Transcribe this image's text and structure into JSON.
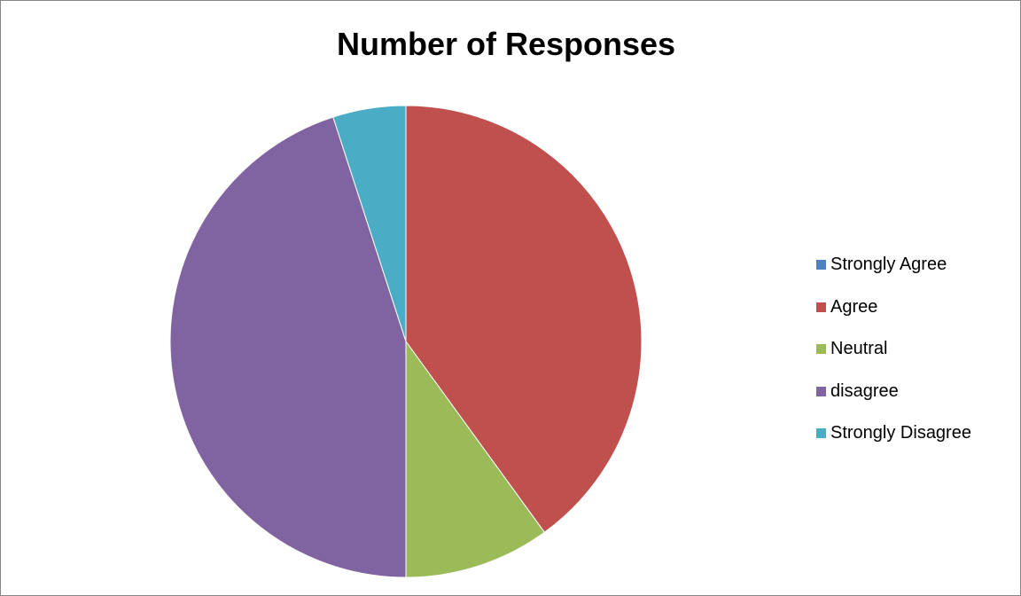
{
  "chart_data": {
    "type": "pie",
    "title": "Number of Responses",
    "categories": [
      "Strongly Agree",
      "Agree",
      "Neutral",
      "disagree",
      "Strongly Disagree"
    ],
    "values": [
      0,
      8,
      2,
      9,
      1
    ],
    "colors": [
      "#4F81BD",
      "#C0504D",
      "#9BBB59",
      "#8064A2",
      "#4BACC6"
    ],
    "start_angle": "12 o'clock",
    "direction": "clockwise",
    "legend_position": "right"
  }
}
